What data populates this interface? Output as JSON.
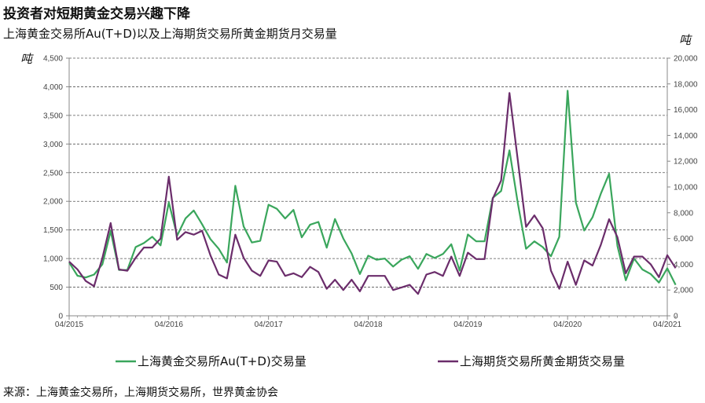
{
  "title": "投资者对短期黄金交易兴趣下降",
  "subtitle": "上海黄金交易所Au(T+D)以及上海期货交易所黄金期货月交易量",
  "unit_left": "吨",
  "unit_right": "吨",
  "source": "来源：上海黄金交易所，上海期货交易所，世界黄金协会",
  "colors": {
    "sge": "#3aa65c",
    "shfe": "#6b2d6b",
    "grid": "#555555",
    "axis": "#888888"
  },
  "chart_data": {
    "type": "line",
    "x_start_month": "04/2015",
    "x_tick_labels": [
      "04/2015",
      "04/2016",
      "04/2017",
      "04/2018",
      "04/2019",
      "04/2020",
      "04/2021"
    ],
    "y_left": {
      "range": [
        0,
        4500
      ],
      "ticks": [
        "0",
        "500",
        "1,000",
        "1,500",
        "2,000",
        "2,500",
        "3,000",
        "3,500",
        "4,000",
        "4,500"
      ]
    },
    "y_right": {
      "range": [
        0,
        20000
      ],
      "ticks": [
        "0",
        "2,000",
        "4,000",
        "6,000",
        "8,000",
        "10,000",
        "12,000",
        "14,000",
        "16,000",
        "18,000",
        "20,000"
      ]
    },
    "grid": true,
    "legend_position": "bottom",
    "series": [
      {
        "name": "上海黄金交易所Au(T+D)交易量",
        "axis": "left",
        "values": [
          930,
          700,
          670,
          720,
          900,
          1480,
          800,
          800,
          1200,
          1270,
          1380,
          1230,
          1980,
          1400,
          1700,
          1840,
          1600,
          1340,
          1170,
          930,
          2270,
          1560,
          1280,
          1310,
          1940,
          1870,
          1700,
          1850,
          1370,
          1590,
          1640,
          1190,
          1690,
          1350,
          1090,
          730,
          1050,
          980,
          1000,
          860,
          980,
          1040,
          820,
          1080,
          1010,
          1080,
          1250,
          790,
          1420,
          1300,
          1300,
          2060,
          2180,
          2890,
          1970,
          1170,
          1300,
          1200,
          1040,
          1380,
          3930,
          1980,
          1490,
          1720,
          2130,
          2480,
          1220,
          620,
          1000,
          810,
          730,
          580,
          830,
          540
        ]
      },
      {
        "name": "上海期货交易所黄金期货交易量",
        "axis": "right",
        "values": [
          4200,
          3600,
          2700,
          2300,
          4500,
          7200,
          3600,
          3500,
          4500,
          5300,
          5300,
          6000,
          10800,
          5900,
          6500,
          6300,
          6600,
          4700,
          3200,
          2900,
          6300,
          4500,
          3500,
          3100,
          4300,
          4200,
          3100,
          3300,
          3000,
          3800,
          3400,
          2100,
          2800,
          2000,
          2800,
          1900,
          3100,
          3100,
          3100,
          2000,
          2200,
          2400,
          1700,
          3200,
          3400,
          3100,
          4600,
          3100,
          4900,
          4400,
          4400,
          9100,
          10500,
          17300,
          12100,
          6900,
          7800,
          6800,
          3500,
          2100,
          4200,
          2400,
          4300,
          3900,
          5500,
          7500,
          6100,
          3300,
          4600,
          4600,
          4000,
          3000,
          4700,
          3700
        ]
      }
    ]
  }
}
